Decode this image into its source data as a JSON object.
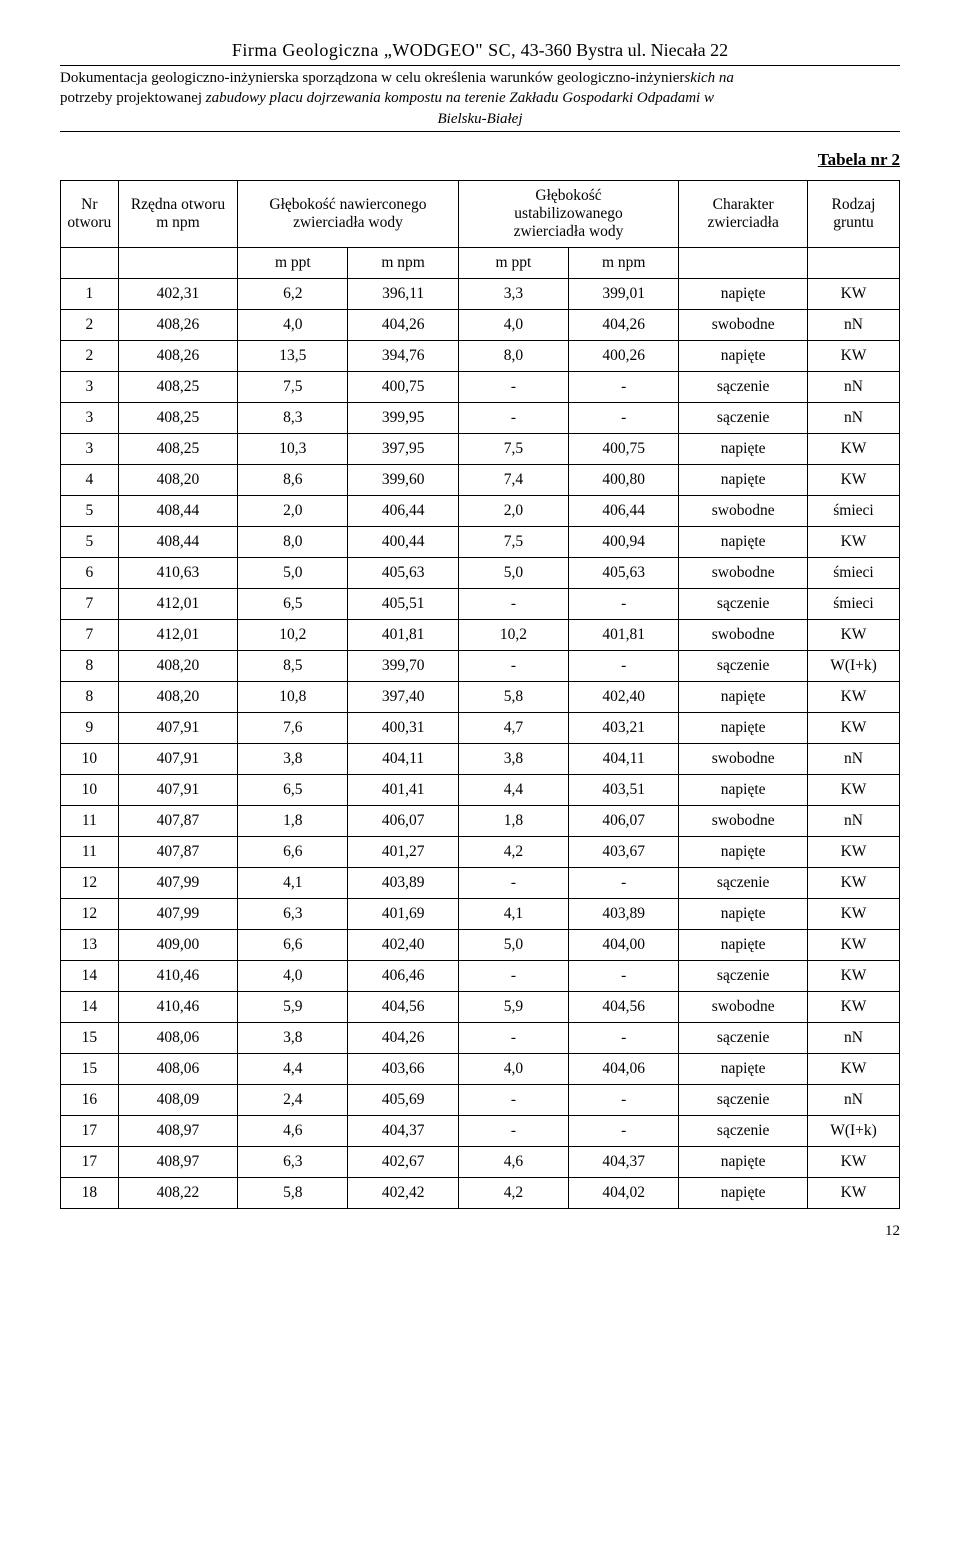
{
  "header": {
    "firm_line_parts": [
      "Firma Geologiczna „WODGEO\" SC,",
      " 43-360 Bystra ul. Niecała 22"
    ],
    "doc_line1_plain": "Dokumentacja geologiczno-inżynierska sporządzona w celu określenia warunków geologiczno-inżynier",
    "doc_line1_italic": "skich na",
    "doc_line2_plain": "potrzeby projektowanej ",
    "doc_line2_italic": "zabudowy placu dojrzewania kompostu na terenie Zakładu Gospodarki Odpadami w",
    "doc_line3_italic": "Bielsku-Białej"
  },
  "table_title": "Tabela nr 2",
  "table": {
    "columns": [
      {
        "h1": "Nr",
        "h2": "otworu"
      },
      {
        "h1": "Rzędna otworu",
        "h2": "m npm"
      },
      {
        "h1": "Głębokość nawierconego",
        "h2": "zwierciadła wody"
      },
      {
        "h1": "Głębokość",
        "h2": "ustabilizowanego",
        "h3": "zwierciadła wody"
      },
      {
        "h1": "Charakter",
        "h2": "zwierciadła"
      },
      {
        "h1": "Rodzaj",
        "h2": "gruntu"
      }
    ],
    "unit_row": [
      "m ppt",
      "m npm",
      "m ppt",
      "m npm"
    ],
    "rows": [
      [
        "1",
        "402,31",
        "6,2",
        "396,11",
        "3,3",
        "399,01",
        "napięte",
        "KW"
      ],
      [
        "2",
        "408,26",
        "4,0",
        "404,26",
        "4,0",
        "404,26",
        "swobodne",
        "nN"
      ],
      [
        "2",
        "408,26",
        "13,5",
        "394,76",
        "8,0",
        "400,26",
        "napięte",
        "KW"
      ],
      [
        "3",
        "408,25",
        "7,5",
        "400,75",
        "-",
        "-",
        "sączenie",
        "nN"
      ],
      [
        "3",
        "408,25",
        "8,3",
        "399,95",
        "-",
        "-",
        "sączenie",
        "nN"
      ],
      [
        "3",
        "408,25",
        "10,3",
        "397,95",
        "7,5",
        "400,75",
        "napięte",
        "KW"
      ],
      [
        "4",
        "408,20",
        "8,6",
        "399,60",
        "7,4",
        "400,80",
        "napięte",
        "KW"
      ],
      [
        "5",
        "408,44",
        "2,0",
        "406,44",
        "2,0",
        "406,44",
        "swobodne",
        "śmieci"
      ],
      [
        "5",
        "408,44",
        "8,0",
        "400,44",
        "7,5",
        "400,94",
        "napięte",
        "KW"
      ],
      [
        "6",
        "410,63",
        "5,0",
        "405,63",
        "5,0",
        "405,63",
        "swobodne",
        "śmieci"
      ],
      [
        "7",
        "412,01",
        "6,5",
        "405,51",
        "-",
        "-",
        "sączenie",
        "śmieci"
      ],
      [
        "7",
        "412,01",
        "10,2",
        "401,81",
        "10,2",
        "401,81",
        "swobodne",
        "KW"
      ],
      [
        "8",
        "408,20",
        "8,5",
        "399,70",
        "-",
        "-",
        "sączenie",
        "W(I+k)"
      ],
      [
        "8",
        "408,20",
        "10,8",
        "397,40",
        "5,8",
        "402,40",
        "napięte",
        "KW"
      ],
      [
        "9",
        "407,91",
        "7,6",
        "400,31",
        "4,7",
        "403,21",
        "napięte",
        "KW"
      ],
      [
        "10",
        "407,91",
        "3,8",
        "404,11",
        "3,8",
        "404,11",
        "swobodne",
        "nN"
      ],
      [
        "10",
        "407,91",
        "6,5",
        "401,41",
        "4,4",
        "403,51",
        "napięte",
        "KW"
      ],
      [
        "11",
        "407,87",
        "1,8",
        "406,07",
        "1,8",
        "406,07",
        "swobodne",
        "nN"
      ],
      [
        "11",
        "407,87",
        "6,6",
        "401,27",
        "4,2",
        "403,67",
        "napięte",
        "KW"
      ],
      [
        "12",
        "407,99",
        "4,1",
        "403,89",
        "-",
        "-",
        "sączenie",
        "KW"
      ],
      [
        "12",
        "407,99",
        "6,3",
        "401,69",
        "4,1",
        "403,89",
        "napięte",
        "KW"
      ],
      [
        "13",
        "409,00",
        "6,6",
        "402,40",
        "5,0",
        "404,00",
        "napięte",
        "KW"
      ],
      [
        "14",
        "410,46",
        "4,0",
        "406,46",
        "-",
        "-",
        "sączenie",
        "KW"
      ],
      [
        "14",
        "410,46",
        "5,9",
        "404,56",
        "5,9",
        "404,56",
        "swobodne",
        "KW"
      ],
      [
        "15",
        "408,06",
        "3,8",
        "404,26",
        "-",
        "-",
        "sączenie",
        "nN"
      ],
      [
        "15",
        "408,06",
        "4,4",
        "403,66",
        "4,0",
        "404,06",
        "napięte",
        "KW"
      ],
      [
        "16",
        "408,09",
        "2,4",
        "405,69",
        "-",
        "-",
        "sączenie",
        "nN"
      ],
      [
        "17",
        "408,97",
        "4,6",
        "404,37",
        "-",
        "-",
        "sączenie",
        "W(I+k)"
      ],
      [
        "17",
        "408,97",
        "6,3",
        "402,67",
        "4,6",
        "404,37",
        "napięte",
        "KW"
      ],
      [
        "18",
        "408,22",
        "5,8",
        "402,42",
        "4,2",
        "404,02",
        "napięte",
        "KW"
      ]
    ],
    "col_widths_pct": [
      6,
      13,
      12,
      12,
      12,
      12,
      14,
      10
    ],
    "border_color": "#000000",
    "background_color": "#ffffff",
    "font_size_pt": 12
  },
  "page_number": "12"
}
